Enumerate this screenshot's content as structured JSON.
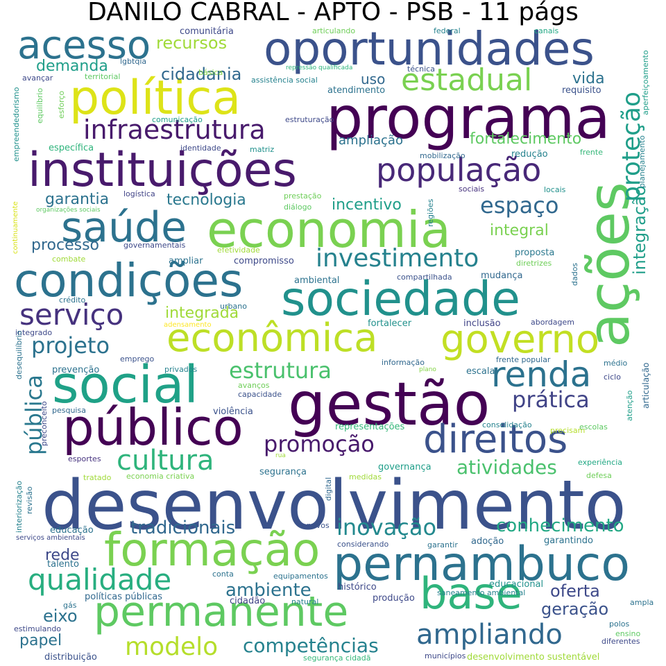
{
  "title": "DANILO CABRAL - APTO - PSB - 11 págs",
  "words": [
    {
      "t": "desenvolvimento",
      "c": "#3b528b"
    },
    {
      "t": "programa",
      "c": "#440154"
    },
    {
      "t": "oportunidades",
      "c": "#3b528b"
    },
    {
      "t": "política",
      "c": "#dde318"
    },
    {
      "t": "instituições",
      "c": "#481a6c"
    },
    {
      "t": "economia",
      "c": "#7ad151"
    },
    {
      "t": "sociedade",
      "c": "#21918c"
    },
    {
      "t": "condições",
      "c": "#2c728e"
    },
    {
      "t": "econômica",
      "c": "#bddf26"
    },
    {
      "t": "governo",
      "c": "#c2df23"
    },
    {
      "t": "gestão",
      "c": "#440154"
    },
    {
      "t": "social",
      "c": "#1fa187"
    },
    {
      "t": "público",
      "c": "#440154"
    },
    {
      "t": "direitos",
      "c": "#3b528b"
    },
    {
      "t": "pernambuco",
      "c": "#2c728e"
    },
    {
      "t": "formação",
      "c": "#7ad151"
    },
    {
      "t": "permanente",
      "c": "#5ec962"
    },
    {
      "t": "base",
      "c": "#2fb47c"
    },
    {
      "t": "ações",
      "c": "#5ec962"
    },
    {
      "t": "acesso",
      "c": "#2c728e"
    },
    {
      "t": "saúde",
      "c": "#2c728e"
    },
    {
      "t": "população",
      "c": "#482878"
    },
    {
      "t": "infraestrutura",
      "c": "#481a6c"
    },
    {
      "t": "estadual",
      "c": "#7ad151"
    },
    {
      "t": "renda",
      "c": "#2c728e"
    },
    {
      "t": "qualidade",
      "c": "#28ae80"
    },
    {
      "t": "serviço",
      "c": "#46327e"
    },
    {
      "t": "cultura",
      "c": "#2fb47c"
    },
    {
      "t": "ampliando",
      "c": "#31688e"
    },
    {
      "t": "modelo",
      "c": "#b5de2b"
    },
    {
      "t": "investimento",
      "c": "#26828e"
    },
    {
      "t": "proteção",
      "c": "#1f9e89"
    },
    {
      "t": "pública",
      "c": "#2a788e"
    },
    {
      "t": "estrutura",
      "c": "#4ac16d"
    },
    {
      "t": "prática",
      "c": "#414487"
    },
    {
      "t": "promoção",
      "c": "#481a6c"
    },
    {
      "t": "projeto",
      "c": "#2c728e"
    },
    {
      "t": "competências",
      "c": "#26828e"
    },
    {
      "t": "inovação",
      "c": "#23898e"
    },
    {
      "t": "atividades",
      "c": "#4ac16d"
    },
    {
      "t": "conhecimento",
      "c": "#22a884"
    },
    {
      "t": "espaço",
      "c": "#31688e"
    },
    {
      "t": "tradicionais",
      "c": "#31688e"
    },
    {
      "t": "ambiente",
      "c": "#2c728e"
    },
    {
      "t": "oferta",
      "c": "#3e4989"
    },
    {
      "t": "geração",
      "c": "#3b528b"
    },
    {
      "t": "integração",
      "c": "#1f9e89"
    },
    {
      "t": "cidadania",
      "c": "#31688e"
    },
    {
      "t": "recursos",
      "c": "#a0da39"
    },
    {
      "t": "demanda",
      "c": "#1f9e89"
    },
    {
      "t": "ampliação",
      "c": "#2c728e"
    },
    {
      "t": "fortalecimento",
      "c": "#5ec962"
    },
    {
      "t": "tecnologia",
      "c": "#2a788e"
    },
    {
      "t": "garantia",
      "c": "#2c728e"
    },
    {
      "t": "incentivo",
      "c": "#1f9e89"
    },
    {
      "t": "integral",
      "c": "#7ad151"
    },
    {
      "t": "processo",
      "c": "#31688e"
    },
    {
      "t": "integrada",
      "c": "#a0da39"
    },
    {
      "t": "vida",
      "c": "#2c728e"
    },
    {
      "t": "uso",
      "c": "#31688e"
    },
    {
      "t": "eixo",
      "c": "#2c728e"
    },
    {
      "t": "papel",
      "c": "#2c728e"
    },
    {
      "t": "rede",
      "c": "#3e4989"
    },
    {
      "t": "comunitária",
      "c": "#3e4989"
    },
    {
      "t": "articulando",
      "c": "#6ece58"
    },
    {
      "t": "federal",
      "c": "#26828e"
    },
    {
      "t": "canais",
      "c": "#22a884"
    },
    {
      "t": "aperfeiçoamento",
      "c": "#1f9e89"
    },
    {
      "t": "lgbtqia",
      "c": "#31688e"
    },
    {
      "t": "básica",
      "c": "#86d549"
    },
    {
      "t": "repressão qualificada",
      "c": "#2fb47c"
    },
    {
      "t": "técnica",
      "c": "#3b528b"
    },
    {
      "t": "avançar",
      "c": "#3e4989"
    },
    {
      "t": "territorial",
      "c": "#5ec962"
    },
    {
      "t": "assistência social",
      "c": "#26828e"
    },
    {
      "t": "atendimento",
      "c": "#2c728e"
    },
    {
      "t": "requisito",
      "c": "#3b528b"
    },
    {
      "t": "empreendedorismo",
      "c": "#21918c"
    },
    {
      "t": "equilíbrio",
      "c": "#5ec962"
    },
    {
      "t": "esforço",
      "c": "#6ece58"
    },
    {
      "t": "comunicação",
      "c": "#1f9e89"
    },
    {
      "t": "estruturação",
      "c": "#3e4989"
    },
    {
      "t": "específica",
      "c": "#2fb47c"
    },
    {
      "t": "identidade",
      "c": "#3e4989"
    },
    {
      "t": "matriz",
      "c": "#21918c"
    },
    {
      "t": "mobilização",
      "c": "#31688e"
    },
    {
      "t": "redução",
      "c": "#26828e"
    },
    {
      "t": "frente",
      "c": "#35b779"
    },
    {
      "t": "planejamento",
      "c": "#26828e"
    },
    {
      "t": "sociais",
      "c": "#46327e"
    },
    {
      "t": "locais",
      "c": "#21918c"
    },
    {
      "t": "logística",
      "c": "#414487"
    },
    {
      "t": "prestação",
      "c": "#6ece58"
    },
    {
      "t": "diálogo",
      "c": "#5ec962"
    },
    {
      "t": "organizações sociais",
      "c": "#5ec962"
    },
    {
      "t": "regiões",
      "c": "#26828e"
    },
    {
      "t": "continuamente",
      "c": "#d8e219"
    },
    {
      "t": "governamentais",
      "c": "#3e4989"
    },
    {
      "t": "efetividade",
      "c": "#a0da39"
    },
    {
      "t": "proposta",
      "c": "#2a788e"
    },
    {
      "t": "combate",
      "c": "#a0da39"
    },
    {
      "t": "ampliar",
      "c": "#2c728e"
    },
    {
      "t": "compromisso",
      "c": "#3e4989"
    },
    {
      "t": "diretrizes",
      "c": "#6ece58"
    },
    {
      "t": "ambiental",
      "c": "#2c728e"
    },
    {
      "t": "compartilhada",
      "c": "#3b528b"
    },
    {
      "t": "mudança",
      "c": "#31688e"
    },
    {
      "t": "dados",
      "c": "#2c728e"
    },
    {
      "t": "crédito",
      "c": "#2c728e"
    },
    {
      "t": "urbano",
      "c": "#2c728e"
    },
    {
      "t": "adensamento",
      "c": "#fde725"
    },
    {
      "t": "fortalecer",
      "c": "#21918c"
    },
    {
      "t": "inclusão",
      "c": "#414487"
    },
    {
      "t": "abordagem",
      "c": "#3e4989"
    },
    {
      "t": "integrado",
      "c": "#3e4989"
    },
    {
      "t": "desequilíbrio",
      "c": "#2c728e"
    },
    {
      "t": "emprego",
      "c": "#3b528b"
    },
    {
      "t": "informação",
      "c": "#31688e"
    },
    {
      "t": "frente popular",
      "c": "#31688e"
    },
    {
      "t": "médio",
      "c": "#2c728e"
    },
    {
      "t": "prevenção",
      "c": "#2c728e"
    },
    {
      "t": "privados",
      "c": "#26828e"
    },
    {
      "t": "plano",
      "c": "#86d549"
    },
    {
      "t": "escala",
      "c": "#2c728e"
    },
    {
      "t": "ciclo",
      "c": "#3e4989"
    },
    {
      "t": "articulação",
      "c": "#31688e"
    },
    {
      "t": "avanços",
      "c": "#6ece58"
    },
    {
      "t": "capacidade",
      "c": "#3b528b"
    },
    {
      "t": "atenção",
      "c": "#1f9e89"
    },
    {
      "t": "pesquisa",
      "c": "#31688e"
    },
    {
      "t": "violência",
      "c": "#3b528b"
    },
    {
      "t": "precisam",
      "c": "#b5de2b"
    },
    {
      "t": "preconceito",
      "c": "#3e4989"
    },
    {
      "t": "representações",
      "c": "#35b779"
    },
    {
      "t": "consolidação",
      "c": "#26828e"
    },
    {
      "t": "escolas",
      "c": "#5ec962"
    },
    {
      "t": "esportes",
      "c": "#46327e"
    },
    {
      "t": "rua",
      "c": "#a0da39"
    },
    {
      "t": "governança",
      "c": "#1f9e89"
    },
    {
      "t": "experiência",
      "c": "#22a884"
    },
    {
      "t": "segurança",
      "c": "#2c728e"
    },
    {
      "t": "tratado",
      "c": "#a0da39"
    },
    {
      "t": "economia criativa",
      "c": "#7ad151"
    },
    {
      "t": "medidas",
      "c": "#a0da39"
    },
    {
      "t": "defesa",
      "c": "#6ece58"
    },
    {
      "t": "interiorização",
      "c": "#26828e"
    },
    {
      "t": "revisão",
      "c": "#2c728e"
    },
    {
      "t": "digital",
      "c": "#31688e"
    },
    {
      "t": "educação",
      "c": "#2c728e"
    },
    {
      "t": "serviços ambientais",
      "c": "#3e4989"
    },
    {
      "t": "povos",
      "c": "#3b528b"
    },
    {
      "t": "considerando",
      "c": "#3b528b"
    },
    {
      "t": "garantir",
      "c": "#2c728e"
    },
    {
      "t": "adoção",
      "c": "#31688e"
    },
    {
      "t": "garantindo",
      "c": "#2c728e"
    },
    {
      "t": "talento",
      "c": "#2c728e"
    },
    {
      "t": "conta",
      "c": "#2c728e"
    },
    {
      "t": "equipamentos",
      "c": "#2c728e"
    },
    {
      "t": "histórico",
      "c": "#3e4989"
    },
    {
      "t": "educacional",
      "c": "#21918c"
    },
    {
      "t": "saneamento ambiental",
      "c": "#26828e"
    },
    {
      "t": "políticas públicas",
      "c": "#31688e"
    },
    {
      "t": "cidadão",
      "c": "#414487"
    },
    {
      "t": "natural",
      "c": "#26828e"
    },
    {
      "t": "produção",
      "c": "#3e4989"
    },
    {
      "t": "gás",
      "c": "#2c728e"
    },
    {
      "t": "ampla",
      "c": "#2c728e"
    },
    {
      "t": "polos",
      "c": "#2c728e"
    },
    {
      "t": "estimulando",
      "c": "#3e4989"
    },
    {
      "t": "ensino",
      "c": "#5ec962"
    },
    {
      "t": "diferentes",
      "c": "#3e4989"
    },
    {
      "t": "distribuição",
      "c": "#3b528b"
    },
    {
      "t": "segurança cidadã",
      "c": "#35b779"
    },
    {
      "t": "municípios",
      "c": "#3e4989"
    },
    {
      "t": "desenvolvimento sustentável",
      "c": "#a0da39"
    }
  ]
}
